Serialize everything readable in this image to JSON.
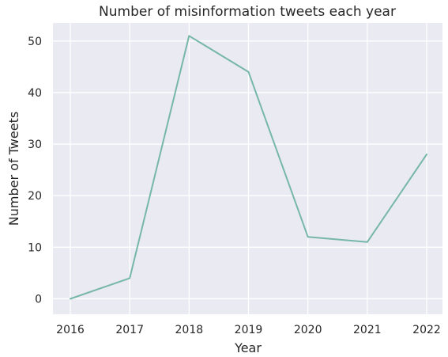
{
  "chart_data": {
    "type": "line",
    "title": "Number of misinformation tweets each year",
    "xlabel": "Year",
    "ylabel": "Number of Tweets",
    "x": [
      "2016",
      "2017",
      "2018",
      "2019",
      "2020",
      "2021",
      "2022"
    ],
    "series": [
      {
        "values": [
          0,
          4,
          51,
          44,
          12,
          11,
          28
        ],
        "color": "#76b7aa"
      }
    ],
    "yticks": [
      "0",
      "10",
      "20",
      "30",
      "40",
      "50"
    ],
    "ylim": [
      -3,
      53.5
    ],
    "grid": true,
    "background": "#eaeaf2"
  }
}
